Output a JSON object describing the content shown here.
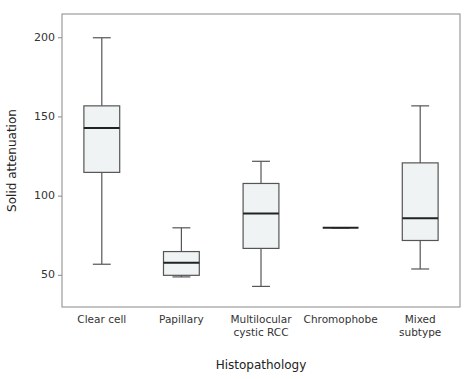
{
  "chart_data": {
    "type": "box",
    "xlabel": "Histopathology",
    "ylabel": "Solid attenuation",
    "categories": [
      "Clear cell",
      "Papillary",
      "Multilocular\ncystic RCC",
      "Chromophobe",
      "Mixed\nsubtype"
    ],
    "boxes": [
      {
        "whislo": 57,
        "q1": 115,
        "med": 143,
        "q3": 157,
        "whishi": 200
      },
      {
        "whislo": 49,
        "q1": 50,
        "med": 58,
        "q3": 65,
        "whishi": 80
      },
      {
        "whislo": 43,
        "q1": 67,
        "med": 89,
        "q3": 108,
        "whishi": 122
      },
      {
        "whislo": 80,
        "q1": 80,
        "med": 80,
        "q3": 80,
        "whishi": 80
      },
      {
        "whislo": 54,
        "q1": 72,
        "med": 86,
        "q3": 121,
        "whishi": 157
      }
    ],
    "color": "#eff3f4",
    "ylim": [
      30,
      215
    ],
    "yticks": [
      50,
      100,
      150,
      200
    ],
    "grid": false
  }
}
